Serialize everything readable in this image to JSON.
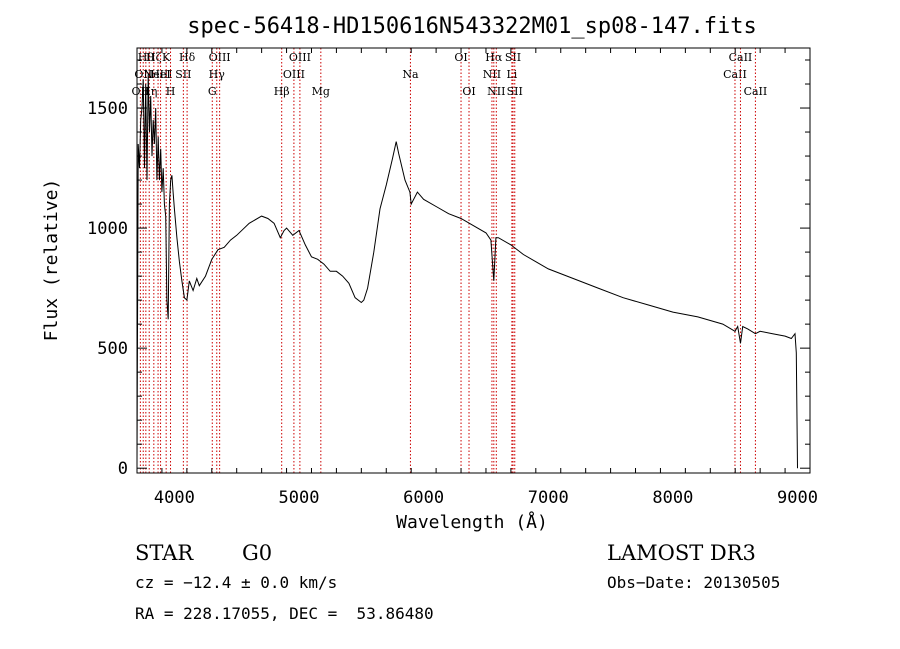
{
  "chart_data": {
    "type": "line",
    "title": "spec-56418-HD150616N543322M01_sp08-147.fits",
    "xlabel": "Wavelength (Å)",
    "ylabel": "Flux (relative)",
    "xlim": [
      3700,
      9100
    ],
    "ylim": [
      -20,
      1750
    ],
    "x_ticks": [
      4000,
      5000,
      6000,
      7000,
      8000,
      9000
    ],
    "y_ticks": [
      0,
      500,
      1000,
      1500
    ],
    "grid": false,
    "line_color": "#000000",
    "marker_color": "#cc0000",
    "series": [
      {
        "x": [
          3700,
          3710,
          3720,
          3730,
          3740,
          3750,
          3760,
          3770,
          3780,
          3790,
          3800,
          3810,
          3820,
          3830,
          3840,
          3850,
          3860,
          3870,
          3880,
          3890,
          3900,
          3910,
          3920,
          3930,
          3940,
          3950,
          3960,
          3970,
          3980,
          3990,
          4000,
          4020,
          4040,
          4060,
          4080,
          4100,
          4120,
          4150,
          4180,
          4200,
          4250,
          4300,
          4350,
          4400,
          4450,
          4500,
          4600,
          4700,
          4750,
          4800,
          4850,
          4880,
          4900,
          4950,
          5000,
          5050,
          5100,
          5150,
          5200,
          5250,
          5300,
          5350,
          5400,
          5450,
          5500,
          5520,
          5550,
          5600,
          5650,
          5700,
          5750,
          5780,
          5800,
          5850,
          5890,
          5900,
          5950,
          6000,
          6100,
          6200,
          6300,
          6400,
          6500,
          6540,
          6563,
          6580,
          6600,
          6700,
          6800,
          6900,
          7000,
          7200,
          7400,
          7600,
          7800,
          8000,
          8200,
          8400,
          8498,
          8520,
          8542,
          8560,
          8600,
          8662,
          8700,
          8800,
          8900,
          8950,
          8980,
          8990,
          9000
        ],
        "values": [
          20,
          1350,
          1250,
          1450,
          1500,
          1620,
          1250,
          1600,
          1200,
          1640,
          1400,
          1550,
          1300,
          1450,
          1350,
          1500,
          1200,
          1380,
          1200,
          1330,
          1150,
          1250,
          1100,
          1050,
          700,
          620,
          1100,
          1200,
          1220,
          1150,
          1080,
          960,
          860,
          780,
          710,
          700,
          780,
          740,
          790,
          760,
          800,
          870,
          910,
          920,
          950,
          970,
          1020,
          1050,
          1040,
          1020,
          960,
          990,
          1000,
          970,
          990,
          930,
          880,
          870,
          850,
          820,
          820,
          800,
          770,
          710,
          690,
          700,
          750,
          900,
          1080,
          1180,
          1290,
          1360,
          1310,
          1200,
          1150,
          1100,
          1150,
          1120,
          1090,
          1060,
          1040,
          1010,
          980,
          950,
          780,
          960,
          960,
          930,
          890,
          860,
          830,
          790,
          750,
          710,
          680,
          650,
          630,
          600,
          570,
          590,
          520,
          590,
          580,
          560,
          570,
          560,
          550,
          540,
          560,
          480,
          0
        ]
      }
    ],
    "line_markers": [
      {
        "wl": 3727,
        "label": "OII",
        "row": 3
      },
      {
        "wl": 3750,
        "label": "OII",
        "row": 2
      },
      {
        "wl": 3771,
        "label": "Hθ",
        "row": 1
      },
      {
        "wl": 3798,
        "label": "Hη",
        "row": 3
      },
      {
        "wl": 3835,
        "label": "Hζ",
        "row": 1
      },
      {
        "wl": 3869,
        "label": "NeIII",
        "row": 2
      },
      {
        "wl": 3889,
        "label": "HeI",
        "row": 2
      },
      {
        "wl": 3934,
        "label": "K",
        "row": 1
      },
      {
        "wl": 3969,
        "label": "H",
        "row": 3
      },
      {
        "wl": 4072,
        "label": "SII",
        "row": 2
      },
      {
        "wl": 4102,
        "label": "Hδ",
        "row": 1
      },
      {
        "wl": 4304,
        "label": "G",
        "row": 3
      },
      {
        "wl": 4340,
        "label": "Hγ",
        "row": 2
      },
      {
        "wl": 4363,
        "label": "OIII",
        "row": 1
      },
      {
        "wl": 4861,
        "label": "Hβ",
        "row": 3
      },
      {
        "wl": 4959,
        "label": "OIII",
        "row": 2
      },
      {
        "wl": 5007,
        "label": "OIII",
        "row": 1
      },
      {
        "wl": 5175,
        "label": "Mg",
        "row": 3
      },
      {
        "wl": 5894,
        "label": "Na",
        "row": 2
      },
      {
        "wl": 6300,
        "label": "OI",
        "row": 1
      },
      {
        "wl": 6364,
        "label": "OI",
        "row": 3
      },
      {
        "wl": 6548,
        "label": "NII",
        "row": 2
      },
      {
        "wl": 6563,
        "label": "Hα",
        "row": 1
      },
      {
        "wl": 6583,
        "label": "NII",
        "row": 3
      },
      {
        "wl": 6708,
        "label": "Li",
        "row": 2
      },
      {
        "wl": 6717,
        "label": "SII",
        "row": 1
      },
      {
        "wl": 6731,
        "label": "SII",
        "row": 3
      },
      {
        "wl": 8498,
        "label": "CaII",
        "row": 2
      },
      {
        "wl": 8542,
        "label": "CaII",
        "row": 1
      },
      {
        "wl": 8662,
        "label": "CaII",
        "row": 3
      }
    ]
  },
  "info": {
    "object_class": "STAR",
    "subclass": "G0",
    "survey": "LAMOST DR3",
    "redshift": "cz = −12.4 ± 0.0 km/s",
    "obs_date": "Obs−Date: 20130505",
    "coords": "RA = 228.17055, DEC =  53.86480"
  }
}
